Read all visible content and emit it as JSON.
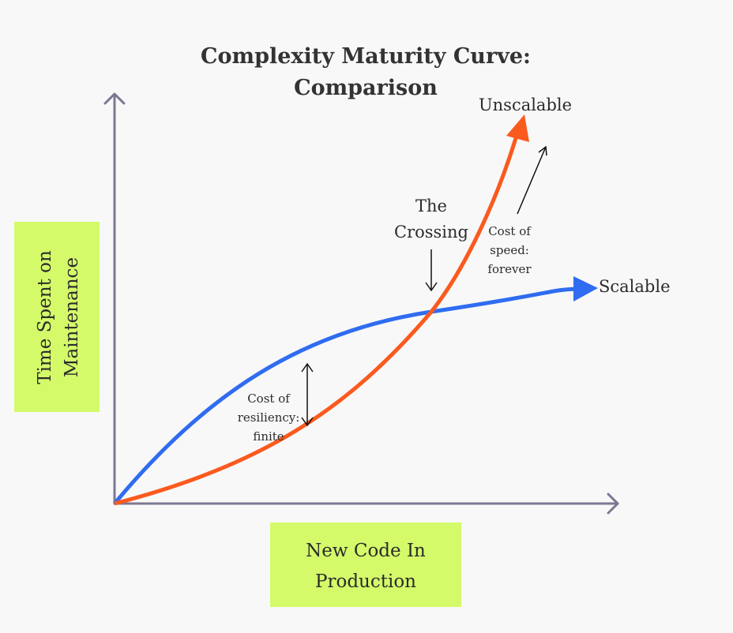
{
  "title_lines": [
    "Complexity Maturity Curve:",
    "Comparison"
  ],
  "y_axis_label_lines": [
    "Time Spent on",
    "Maintenance"
  ],
  "x_axis_label_lines": [
    "New Code In",
    "Production"
  ],
  "curves": {
    "unscalable": "Unscalable",
    "scalable": "Scalable"
  },
  "crossing_lines": [
    "The",
    "Crossing"
  ],
  "cost_of_speed_lines": [
    "Cost of",
    "speed:",
    "forever"
  ],
  "cost_of_resiliency_lines": [
    "Cost of",
    "resiliency:",
    "finite"
  ]
}
